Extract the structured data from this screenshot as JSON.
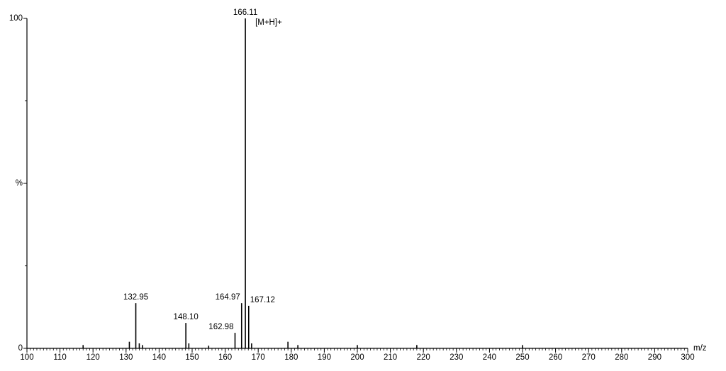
{
  "chart_data": {
    "type": "spectrum",
    "x_axis_label": "m/z",
    "annotation": "[M+H]+",
    "annotation_peak": 166.11,
    "color": "#000000",
    "xlim": [
      100,
      300
    ],
    "xticks": [
      100,
      110,
      120,
      130,
      140,
      150,
      160,
      170,
      180,
      190,
      200,
      210,
      220,
      230,
      240,
      250,
      260,
      270,
      280,
      290,
      300
    ],
    "xminor": 1,
    "ylim": [
      0,
      100
    ],
    "yticks": [
      0,
      {
        "value": 50,
        "label": "%"
      },
      100
    ],
    "yminor": [
      25,
      75
    ],
    "x": [
      117,
      131,
      132.95,
      134,
      135,
      148.1,
      149,
      155,
      162.98,
      164.97,
      166.11,
      167.12,
      168,
      179,
      182,
      200,
      218,
      250
    ],
    "values": [
      1,
      2,
      13.7,
      1.5,
      1,
      7.7,
      1.5,
      0.8,
      4.7,
      13.7,
      100,
      12.9,
      1.5,
      2,
      1,
      1,
      1,
      1
    ],
    "labels": [
      null,
      null,
      "132.95",
      null,
      null,
      "148.10",
      null,
      null,
      "162.98",
      "164.97",
      "166.11",
      "167.12",
      null,
      null,
      null,
      null,
      null,
      null
    ]
  }
}
